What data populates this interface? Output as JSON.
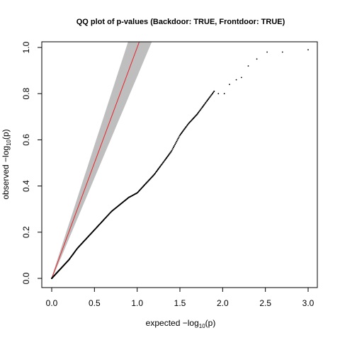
{
  "chart_data": {
    "type": "scatter",
    "title": "QQ plot of p-values (Backdoor: TRUE, Frontdoor: TRUE)",
    "xlabel": {
      "prefix": "expected ",
      "minus": "−",
      "log": "log",
      "sub": "10",
      "arg": "(p)"
    },
    "ylabel": {
      "prefix": "observed ",
      "minus": "−",
      "log": "log",
      "sub": "10",
      "arg": "(p)"
    },
    "xlim": [
      0,
      3.1
    ],
    "ylim": [
      0,
      1.02
    ],
    "x_ticks": [
      "0.0",
      "0.5",
      "1.0",
      "1.5",
      "2.0",
      "2.5",
      "3.0"
    ],
    "y_ticks": [
      "0.0",
      "0.2",
      "0.4",
      "0.6",
      "0.8",
      "1.0"
    ],
    "grid": false,
    "reference_line": {
      "slope": 1,
      "intercept": 0,
      "color": "#e6252a"
    },
    "confidence_band_color": "#bebebe",
    "point_color": "#000000",
    "curve": [
      {
        "x": 0.0,
        "y": 0.0
      },
      {
        "x": 0.1,
        "y": 0.04
      },
      {
        "x": 0.2,
        "y": 0.08
      },
      {
        "x": 0.3,
        "y": 0.13
      },
      {
        "x": 0.4,
        "y": 0.17
      },
      {
        "x": 0.5,
        "y": 0.21
      },
      {
        "x": 0.6,
        "y": 0.25
      },
      {
        "x": 0.7,
        "y": 0.29
      },
      {
        "x": 0.8,
        "y": 0.32
      },
      {
        "x": 0.9,
        "y": 0.35
      },
      {
        "x": 1.0,
        "y": 0.37
      },
      {
        "x": 1.1,
        "y": 0.41
      },
      {
        "x": 1.2,
        "y": 0.45
      },
      {
        "x": 1.3,
        "y": 0.5
      },
      {
        "x": 1.4,
        "y": 0.55
      },
      {
        "x": 1.5,
        "y": 0.62
      },
      {
        "x": 1.6,
        "y": 0.67
      },
      {
        "x": 1.7,
        "y": 0.71
      },
      {
        "x": 1.8,
        "y": 0.76
      },
      {
        "x": 1.9,
        "y": 0.81
      }
    ],
    "tail_points": [
      {
        "x": 1.95,
        "y": 0.8
      },
      {
        "x": 2.02,
        "y": 0.8
      },
      {
        "x": 2.08,
        "y": 0.84
      },
      {
        "x": 2.16,
        "y": 0.86
      },
      {
        "x": 2.22,
        "y": 0.87
      },
      {
        "x": 2.3,
        "y": 0.92
      },
      {
        "x": 2.4,
        "y": 0.95
      },
      {
        "x": 2.52,
        "y": 0.98
      },
      {
        "x": 2.7,
        "y": 0.98
      },
      {
        "x": 3.0,
        "y": 0.99
      }
    ]
  }
}
